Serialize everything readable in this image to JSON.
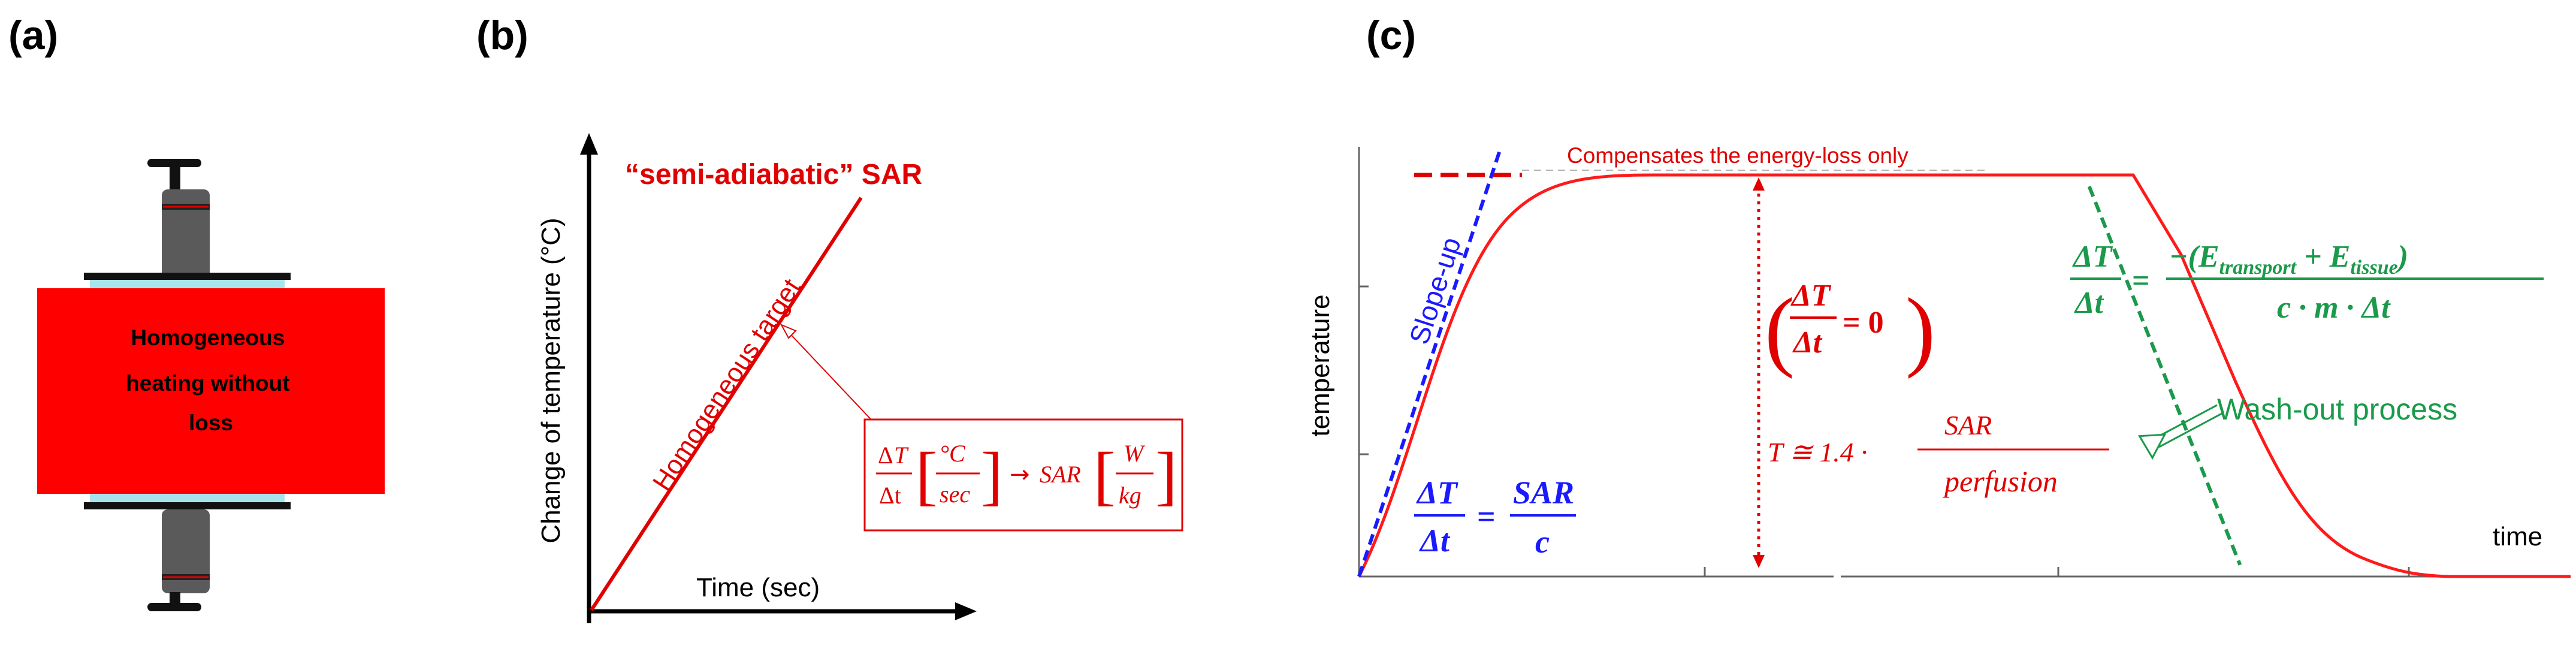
{
  "panels": {
    "a": {
      "label": "(a)",
      "box_text": [
        "Homogeneous",
        "heating without",
        "loss"
      ],
      "colors": {
        "box": "#ff0000",
        "plate": "#111111",
        "pad": "#a8e4ec",
        "spring": "#5a5a5a"
      }
    },
    "b": {
      "label": "(b)",
      "title": "“semi-adiabatic” SAR",
      "y_axis_label": "Change of temperature (°C)",
      "x_axis_label": "Time (sec)",
      "line_label": "Homogeneous target",
      "formula": {
        "delta": "Δ",
        "T": "T",
        "delta_t": "Δt",
        "unit_1_num": "°C",
        "unit_1_den": "sec",
        "arrow": "→",
        "sar": "SAR",
        "unit_2_num": "W",
        "unit_2_den": "kg"
      },
      "colors": {
        "line": "#e00000",
        "axis": "#000000"
      }
    },
    "c": {
      "label": "(c)",
      "y_axis_label": "temperature",
      "x_axis_label": "time",
      "compensates_label": "Compensates the energy-loss only",
      "slope_up_label": "Slope-up",
      "washout_label": "Wash-out process",
      "eq_zero": {
        "num": "ΔT",
        "den": "Δt",
        "rhs": "= 0"
      },
      "eq_rise": {
        "num": "ΔT",
        "den": "Δt",
        "eq": "=",
        "rhs_num": "SAR",
        "rhs_den": "c"
      },
      "eq_decay": {
        "num": "ΔT",
        "den": "Δt",
        "eq": "=",
        "rhs_num": "−(E",
        "rhs_num_sub1": "transport",
        "rhs_num_mid": " + E",
        "rhs_num_sub2": "tissue",
        "rhs_num_end": ")",
        "rhs_den": "c · m · Δt"
      },
      "eq_perfusion": {
        "lhs": "T ≅ 1.4 ·",
        "num": "SAR",
        "den": "perfusion"
      },
      "colors": {
        "curve": "#ff1a1a",
        "slope": "#1a1aff",
        "washout": "#1a9a4a",
        "axis": "#666666"
      }
    }
  }
}
